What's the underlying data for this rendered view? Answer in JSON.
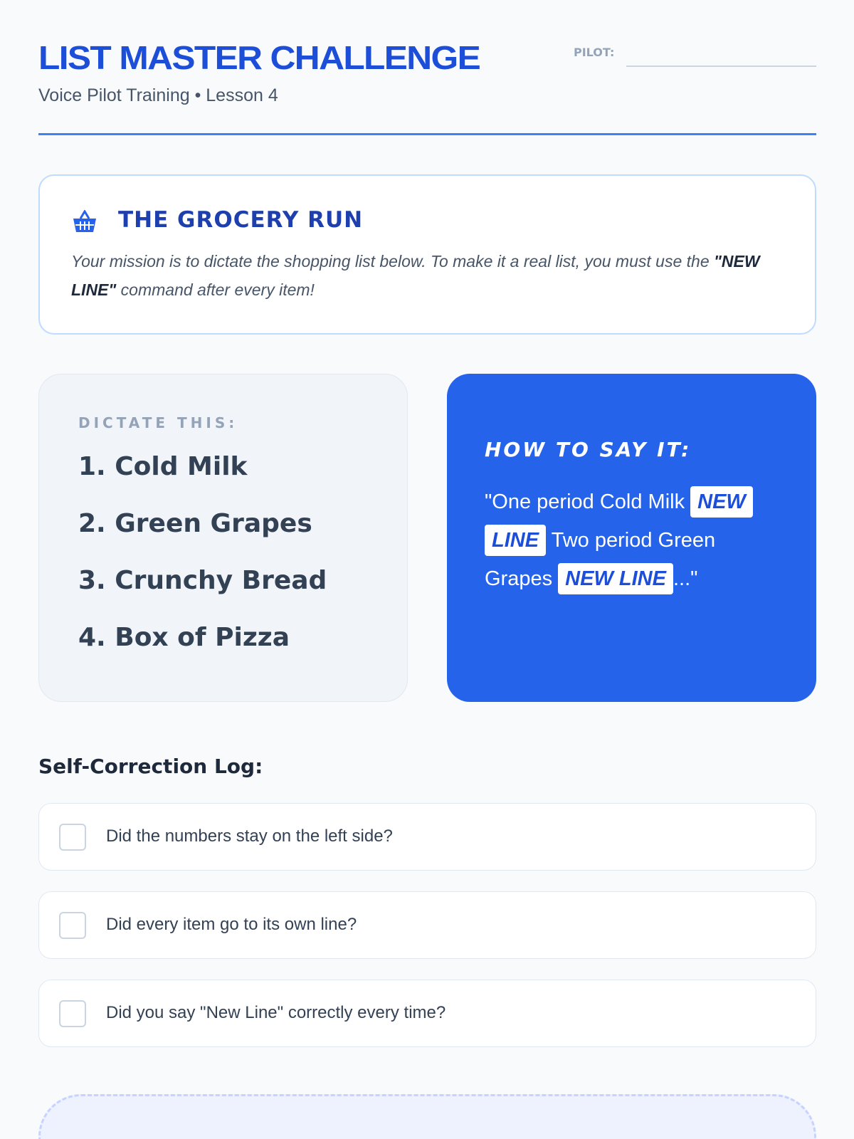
{
  "header": {
    "title": "LIST MASTER CHALLENGE",
    "subtitle": "Voice Pilot Training • Lesson 4",
    "pilot_label": "PILOT:",
    "pilot_value": ""
  },
  "mission": {
    "icon": "basket-icon",
    "title": "THE GROCERY RUN",
    "text_before": "Your mission is to dictate the shopping list below. To make it a real list, you must use the ",
    "text_bold": "\"NEW LINE\"",
    "text_after": " command after every item!"
  },
  "dictate": {
    "label": "DICTATE THIS:",
    "items": [
      "1. Cold Milk",
      "2. Green Grapes",
      "3. Crunchy Bread",
      "4. Box of Pizza"
    ]
  },
  "howto": {
    "label": "HOW TO SAY IT:",
    "part1": "\"One period Cold Milk ",
    "tag1": "NEW LINE",
    "part2": " Two period Green Grapes ",
    "tag2": "NEW LINE",
    "part3": "...\""
  },
  "log": {
    "title": "Self-Correction Log:",
    "items": [
      {
        "label": "Did the numbers stay on the left side?",
        "checked": false
      },
      {
        "label": "Did every item go to its own line?",
        "checked": false
      },
      {
        "label": "Did you say \"New Line\" correctly every time?",
        "checked": false
      }
    ]
  },
  "colors": {
    "accent": "#2563eb",
    "title": "#1d4ed8",
    "background": "#f8fafc"
  }
}
